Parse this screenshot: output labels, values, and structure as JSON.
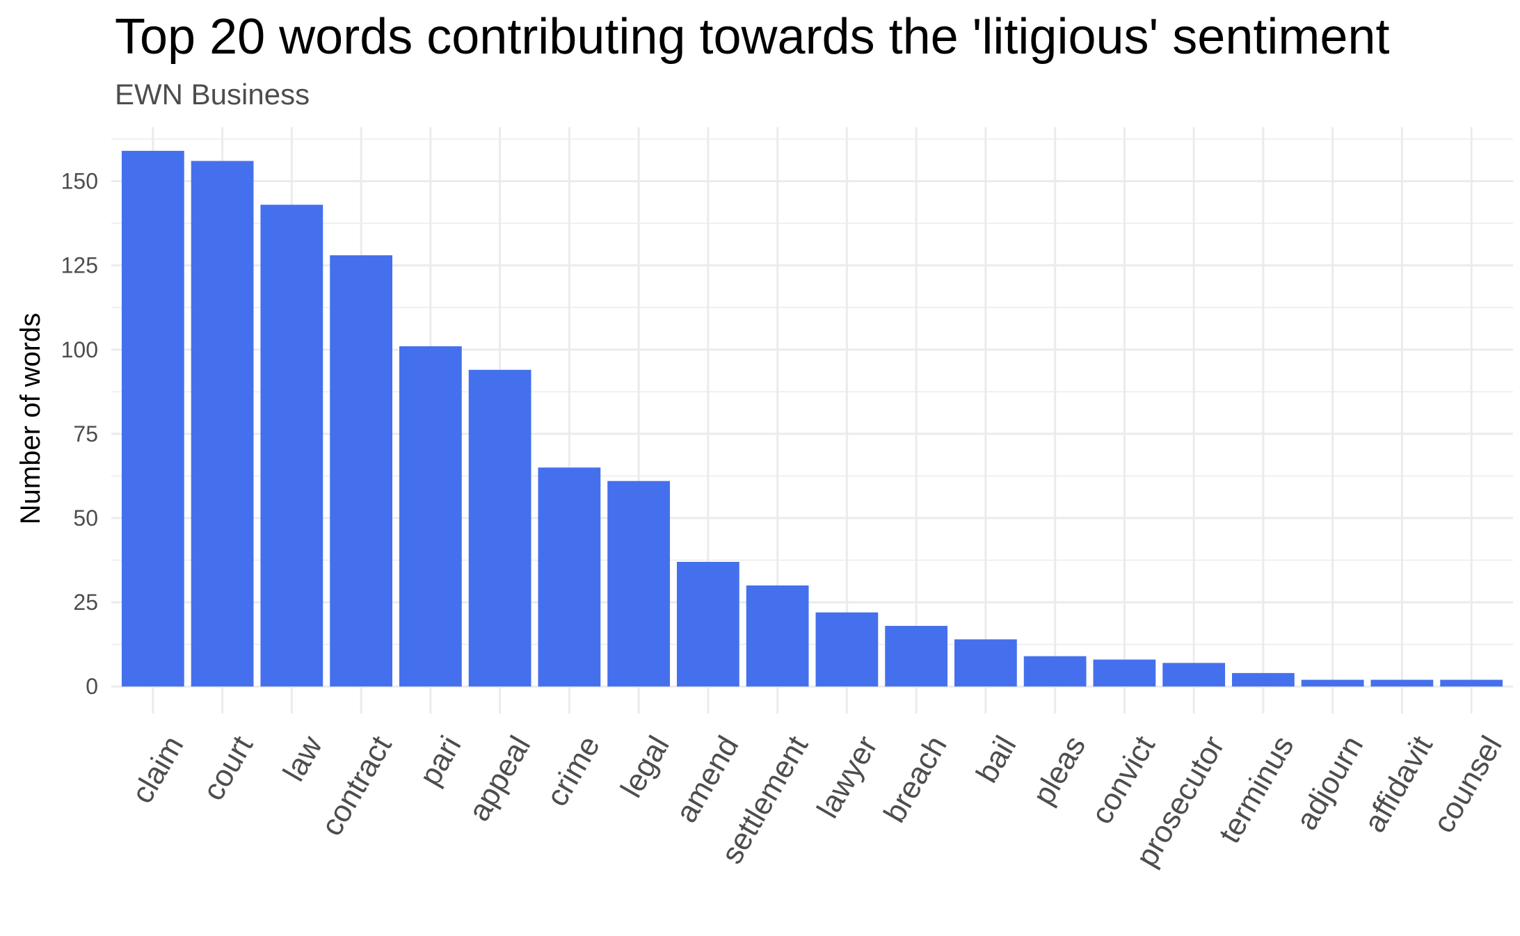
{
  "chart_data": {
    "type": "bar",
    "title": "Top 20 words contributing towards the 'litigious' sentiment",
    "subtitle": "EWN Business",
    "xlabel": "",
    "ylabel": "Number of words",
    "categories": [
      "claim",
      "court",
      "law",
      "contract",
      "pari",
      "appeal",
      "crime",
      "legal",
      "amend",
      "settlement",
      "lawyer",
      "breach",
      "bail",
      "pleas",
      "convict",
      "prosecutor",
      "terminus",
      "adjourn",
      "affidavit",
      "counsel"
    ],
    "values": [
      159,
      156,
      143,
      128,
      101,
      94,
      65,
      61,
      37,
      30,
      22,
      18,
      14,
      9,
      8,
      7,
      4,
      2,
      2,
      2
    ],
    "ylim": [
      -8,
      166
    ],
    "yticks": [
      0,
      25,
      50,
      75,
      100,
      125,
      150
    ],
    "grid": true,
    "legend": "none",
    "bar_color": "#4570ED",
    "grid_color": "#EBEBEB"
  }
}
